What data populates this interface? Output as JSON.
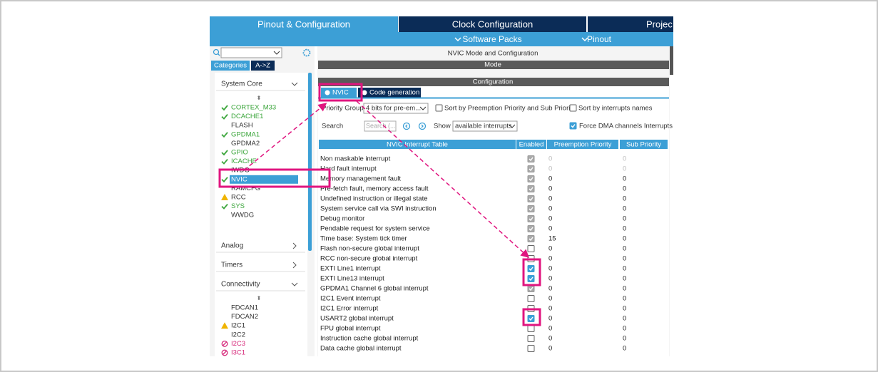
{
  "tabs": [
    "Pinout & Configuration",
    "Clock Configuration",
    "Projec"
  ],
  "subtabs": [
    "Software Packs",
    "Pinout"
  ],
  "sidebar": {
    "view_tabs": [
      "Categories",
      "A->Z"
    ],
    "groups": [
      {
        "name": "System Core",
        "expanded": true,
        "items": [
          {
            "label": "CORTEX_M33",
            "status": "ok"
          },
          {
            "label": "DCACHE1",
            "status": "ok"
          },
          {
            "label": "FLASH",
            "status": "none"
          },
          {
            "label": "GPDMA1",
            "status": "ok"
          },
          {
            "label": "GPDMA2",
            "status": "none"
          },
          {
            "label": "GPIO",
            "status": "ok"
          },
          {
            "label": "ICACHE",
            "status": "ok"
          },
          {
            "label": "IWDG",
            "status": "none"
          },
          {
            "label": "NVIC",
            "status": "ok",
            "selected": true
          },
          {
            "label": "RAMCFG",
            "status": "none"
          },
          {
            "label": "RCC",
            "status": "warn"
          },
          {
            "label": "SYS",
            "status": "ok"
          },
          {
            "label": "WWDG",
            "status": "none"
          }
        ]
      },
      {
        "name": "Analog",
        "expanded": false
      },
      {
        "name": "Timers",
        "expanded": false
      },
      {
        "name": "Connectivity",
        "expanded": true,
        "items": [
          {
            "label": "FDCAN1",
            "status": "none"
          },
          {
            "label": "FDCAN2",
            "status": "none"
          },
          {
            "label": "I2C1",
            "status": "warn"
          },
          {
            "label": "I2C2",
            "status": "none"
          },
          {
            "label": "I2C3",
            "status": "disabled"
          },
          {
            "label": "I3C1",
            "status": "disabled"
          }
        ]
      }
    ]
  },
  "panel": {
    "title": "NVIC Mode and Configuration",
    "mode": "Mode",
    "configuration": "Configuration",
    "config_tabs": [
      "NVIC",
      "Code generation"
    ],
    "priority_group_label": "Priority Group",
    "priority_group_value": "4 bits for pre-em...",
    "sort_priority": {
      "label": "Sort by Preemption Priority and Sub Priority",
      "checked": false
    },
    "sort_names": {
      "label": "Sort by interrupts names",
      "checked": false
    },
    "search_label": "Search",
    "search_placeholder": "Search (...",
    "show_label": "Show",
    "show_value": "available interrupts",
    "force_dma": {
      "label": "Force DMA channels Interrupts",
      "checked": true
    }
  },
  "table": {
    "columns": [
      "NVIC Interrupt Table",
      "Enabled",
      "Preemption Priority",
      "Sub Priority"
    ],
    "rows": [
      {
        "name": "Non maskable interrupt",
        "enabled": true,
        "fixed": true,
        "preemption": 0,
        "sub": 0,
        "priority_fixed": true
      },
      {
        "name": "Hard fault interrupt",
        "enabled": true,
        "fixed": true,
        "preemption": 0,
        "sub": 0,
        "priority_fixed": true
      },
      {
        "name": "Memory management fault",
        "enabled": true,
        "fixed": true,
        "preemption": 0,
        "sub": 0
      },
      {
        "name": "Pre-fetch fault, memory access fault",
        "enabled": true,
        "fixed": true,
        "preemption": 0,
        "sub": 0
      },
      {
        "name": "Undefined instruction or illegal state",
        "enabled": true,
        "fixed": true,
        "preemption": 0,
        "sub": 0
      },
      {
        "name": "System service call via SWI instruction",
        "enabled": true,
        "fixed": true,
        "preemption": 0,
        "sub": 0
      },
      {
        "name": "Debug monitor",
        "enabled": true,
        "fixed": true,
        "preemption": 0,
        "sub": 0
      },
      {
        "name": "Pendable request for system service",
        "enabled": true,
        "fixed": true,
        "preemption": 0,
        "sub": 0
      },
      {
        "name": "Time base: System tick timer",
        "enabled": true,
        "fixed": true,
        "preemption": 15,
        "sub": 0
      },
      {
        "name": "Flash non-secure global interrupt",
        "enabled": false,
        "fixed": false,
        "preemption": 0,
        "sub": 0
      },
      {
        "name": "RCC non-secure global interrupt",
        "enabled": false,
        "fixed": false,
        "preemption": 0,
        "sub": 0
      },
      {
        "name": "EXTI Line1 interrupt",
        "enabled": true,
        "fixed": false,
        "preemption": 0,
        "sub": 0
      },
      {
        "name": "EXTI Line13 interrupt",
        "enabled": true,
        "fixed": false,
        "preemption": 0,
        "sub": 0
      },
      {
        "name": "GPDMA1 Channel 6 global interrupt",
        "enabled": true,
        "fixed": true,
        "preemption": 0,
        "sub": 0
      },
      {
        "name": "I2C1 Event interrupt",
        "enabled": false,
        "fixed": false,
        "preemption": 0,
        "sub": 0
      },
      {
        "name": "I2C1 Error interrupt",
        "enabled": false,
        "fixed": false,
        "preemption": 0,
        "sub": 0
      },
      {
        "name": "USART2 global interrupt",
        "enabled": true,
        "fixed": false,
        "preemption": 0,
        "sub": 0
      },
      {
        "name": "FPU global interrupt",
        "enabled": false,
        "fixed": false,
        "preemption": 0,
        "sub": 0
      },
      {
        "name": "Instruction cache global interrupt",
        "enabled": false,
        "fixed": false,
        "preemption": 0,
        "sub": 0
      },
      {
        "name": "Data cache global interrupt",
        "enabled": false,
        "fixed": false,
        "preemption": 0,
        "sub": 0
      }
    ]
  }
}
